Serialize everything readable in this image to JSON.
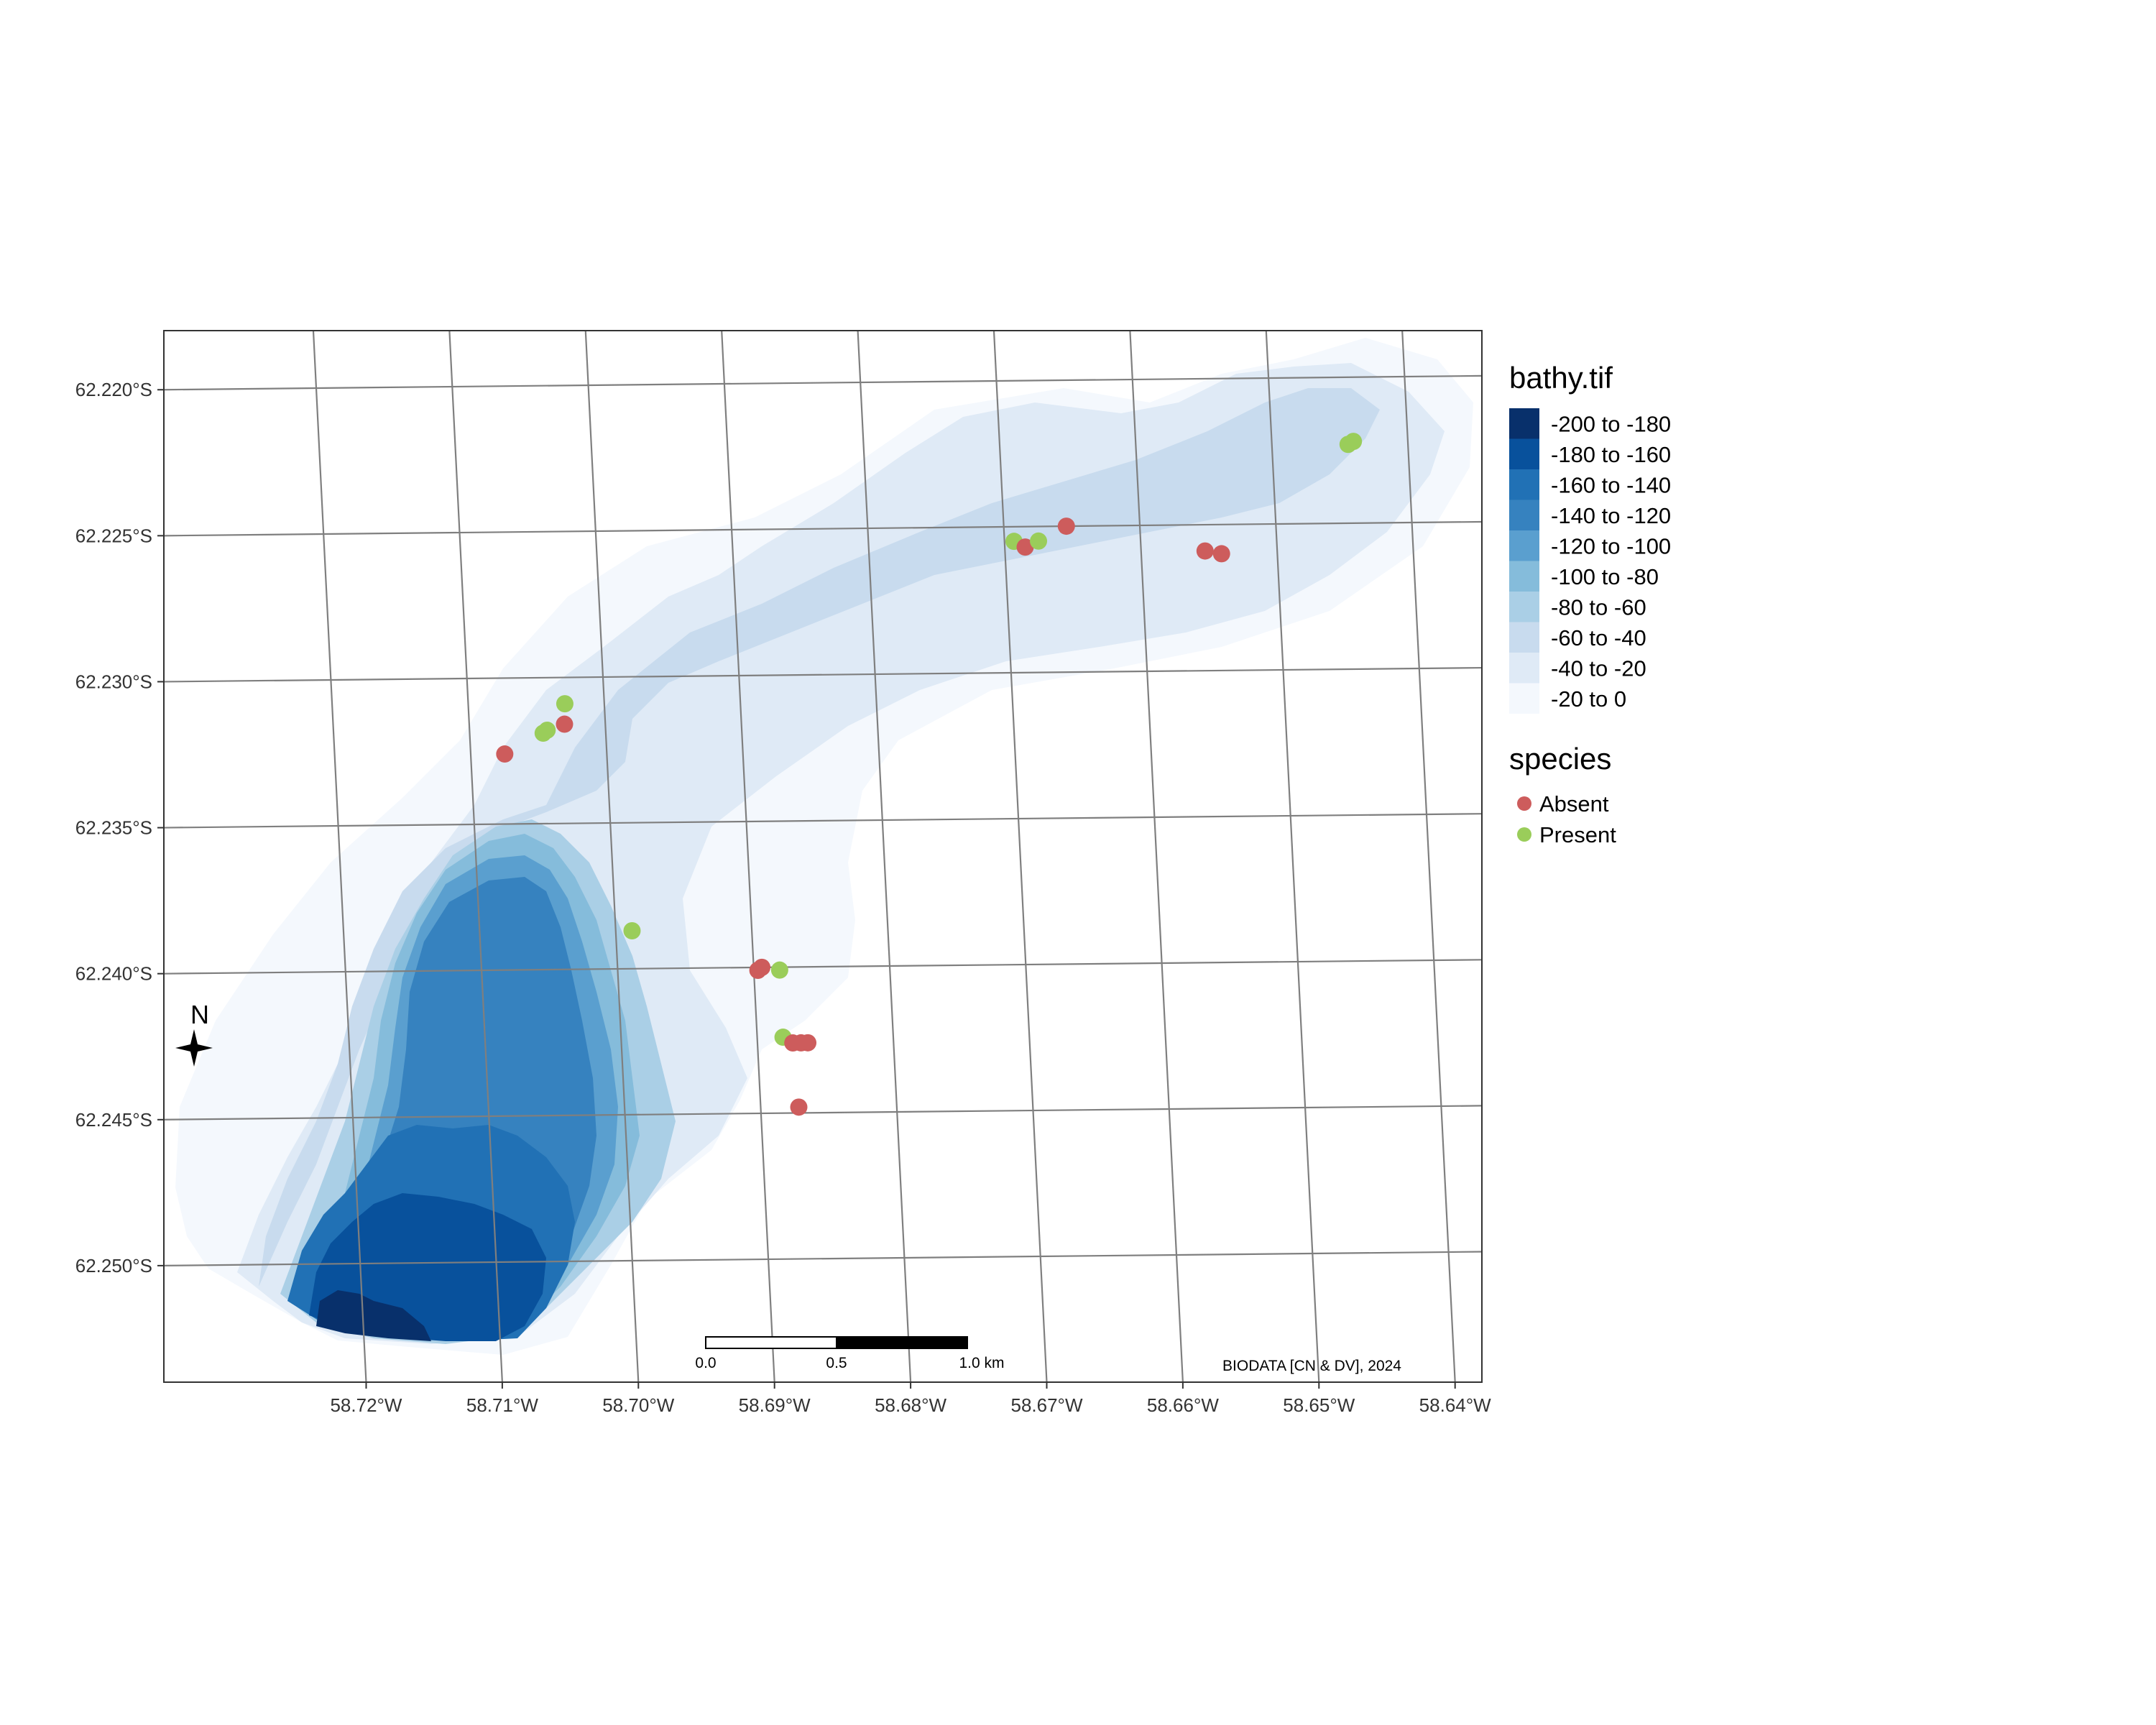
{
  "chart_data": {
    "type": "map",
    "title": "",
    "raster_layer": {
      "name": "bathy.tif",
      "classes": [
        {
          "label": "-200 to -180",
          "color": "#08306b"
        },
        {
          "label": "-180 to -160",
          "color": "#08519c"
        },
        {
          "label": "-160 to -140",
          "color": "#2171b5"
        },
        {
          "label": "-140 to -120",
          "color": "#3682bf"
        },
        {
          "label": "-120 to -100",
          "color": "#5a9fcf"
        },
        {
          "label": "-100 to -80",
          "color": "#85bcdb"
        },
        {
          "label": "-80 to -60",
          "color": "#aacfe6"
        },
        {
          "label": "-60 to -40",
          "color": "#c8dbee"
        },
        {
          "label": "-40 to -20",
          "color": "#dfeaf6"
        },
        {
          "label": "-20 to 0",
          "color": "#f4f8fd"
        }
      ]
    },
    "point_layer": {
      "name": "species",
      "categories": [
        {
          "label": "Absent",
          "color": "#cd5c5c"
        },
        {
          "label": "Present",
          "color": "#9acd5a"
        }
      ],
      "points": [
        {
          "lon": -58.7075,
          "lat": -62.2326,
          "species": "Absent"
        },
        {
          "lon": -58.703,
          "lat": -62.2316,
          "species": "Absent"
        },
        {
          "lon": -58.7046,
          "lat": -62.2319,
          "species": "Present"
        },
        {
          "lon": -58.7043,
          "lat": -62.2318,
          "species": "Present"
        },
        {
          "lon": -58.7029,
          "lat": -62.2309,
          "species": "Present"
        },
        {
          "lon": -58.6988,
          "lat": -62.2387,
          "species": "Present"
        },
        {
          "lon": -58.6897,
          "lat": -62.2401,
          "species": "Absent"
        },
        {
          "lon": -58.6894,
          "lat": -62.24,
          "species": "Absent"
        },
        {
          "lon": -58.6881,
          "lat": -62.2401,
          "species": "Present"
        },
        {
          "lon": -58.6881,
          "lat": -62.2424,
          "species": "Present"
        },
        {
          "lon": -58.6874,
          "lat": -62.2426,
          "species": "Absent"
        },
        {
          "lon": -58.6868,
          "lat": -62.2426,
          "species": "Absent"
        },
        {
          "lon": -58.6863,
          "lat": -62.2426,
          "species": "Absent"
        },
        {
          "lon": -58.6872,
          "lat": -62.2448,
          "species": "Absent"
        },
        {
          "lon": -58.6693,
          "lat": -62.2255,
          "species": "Present"
        },
        {
          "lon": -58.6685,
          "lat": -62.2257,
          "species": "Absent"
        },
        {
          "lon": -58.6675,
          "lat": -62.2255,
          "species": "Present"
        },
        {
          "lon": -58.6654,
          "lat": -62.225,
          "species": "Absent"
        },
        {
          "lon": -58.6553,
          "lat": -62.2259,
          "species": "Absent"
        },
        {
          "lon": -58.6541,
          "lat": -62.226,
          "species": "Absent"
        },
        {
          "lon": -58.6444,
          "lat": -62.2223,
          "species": "Present"
        },
        {
          "lon": -58.644,
          "lat": -62.2222,
          "species": "Present"
        }
      ]
    },
    "xlim": [
      -58.7295,
      -58.6337
    ],
    "ylim": [
      -62.254,
      -62.218
    ],
    "x_ticks": [
      {
        "value": -58.72,
        "label": "58.72°W"
      },
      {
        "value": -58.71,
        "label": "58.71°W"
      },
      {
        "value": -58.7,
        "label": "58.70°W"
      },
      {
        "value": -58.69,
        "label": "58.69°W"
      },
      {
        "value": -58.68,
        "label": "58.68°W"
      },
      {
        "value": -58.67,
        "label": "58.67°W"
      },
      {
        "value": -58.66,
        "label": "58.66°W"
      },
      {
        "value": -58.65,
        "label": "58.65°W"
      },
      {
        "value": -58.64,
        "label": "58.64°W"
      }
    ],
    "y_ticks": [
      {
        "value": -62.22,
        "label": "62.220°S"
      },
      {
        "value": -62.225,
        "label": "62.225°S"
      },
      {
        "value": -62.23,
        "label": "62.230°S"
      },
      {
        "value": -62.235,
        "label": "62.235°S"
      },
      {
        "value": -62.24,
        "label": "62.240°S"
      },
      {
        "value": -62.245,
        "label": "62.245°S"
      },
      {
        "value": -62.25,
        "label": "62.250°S"
      }
    ],
    "scale_bar": {
      "labels": [
        "0.0",
        "0.5",
        "1.0 km"
      ]
    },
    "north_arrow": {
      "label": "N"
    },
    "credit": "BIODATA [CN & DV], 2024"
  }
}
